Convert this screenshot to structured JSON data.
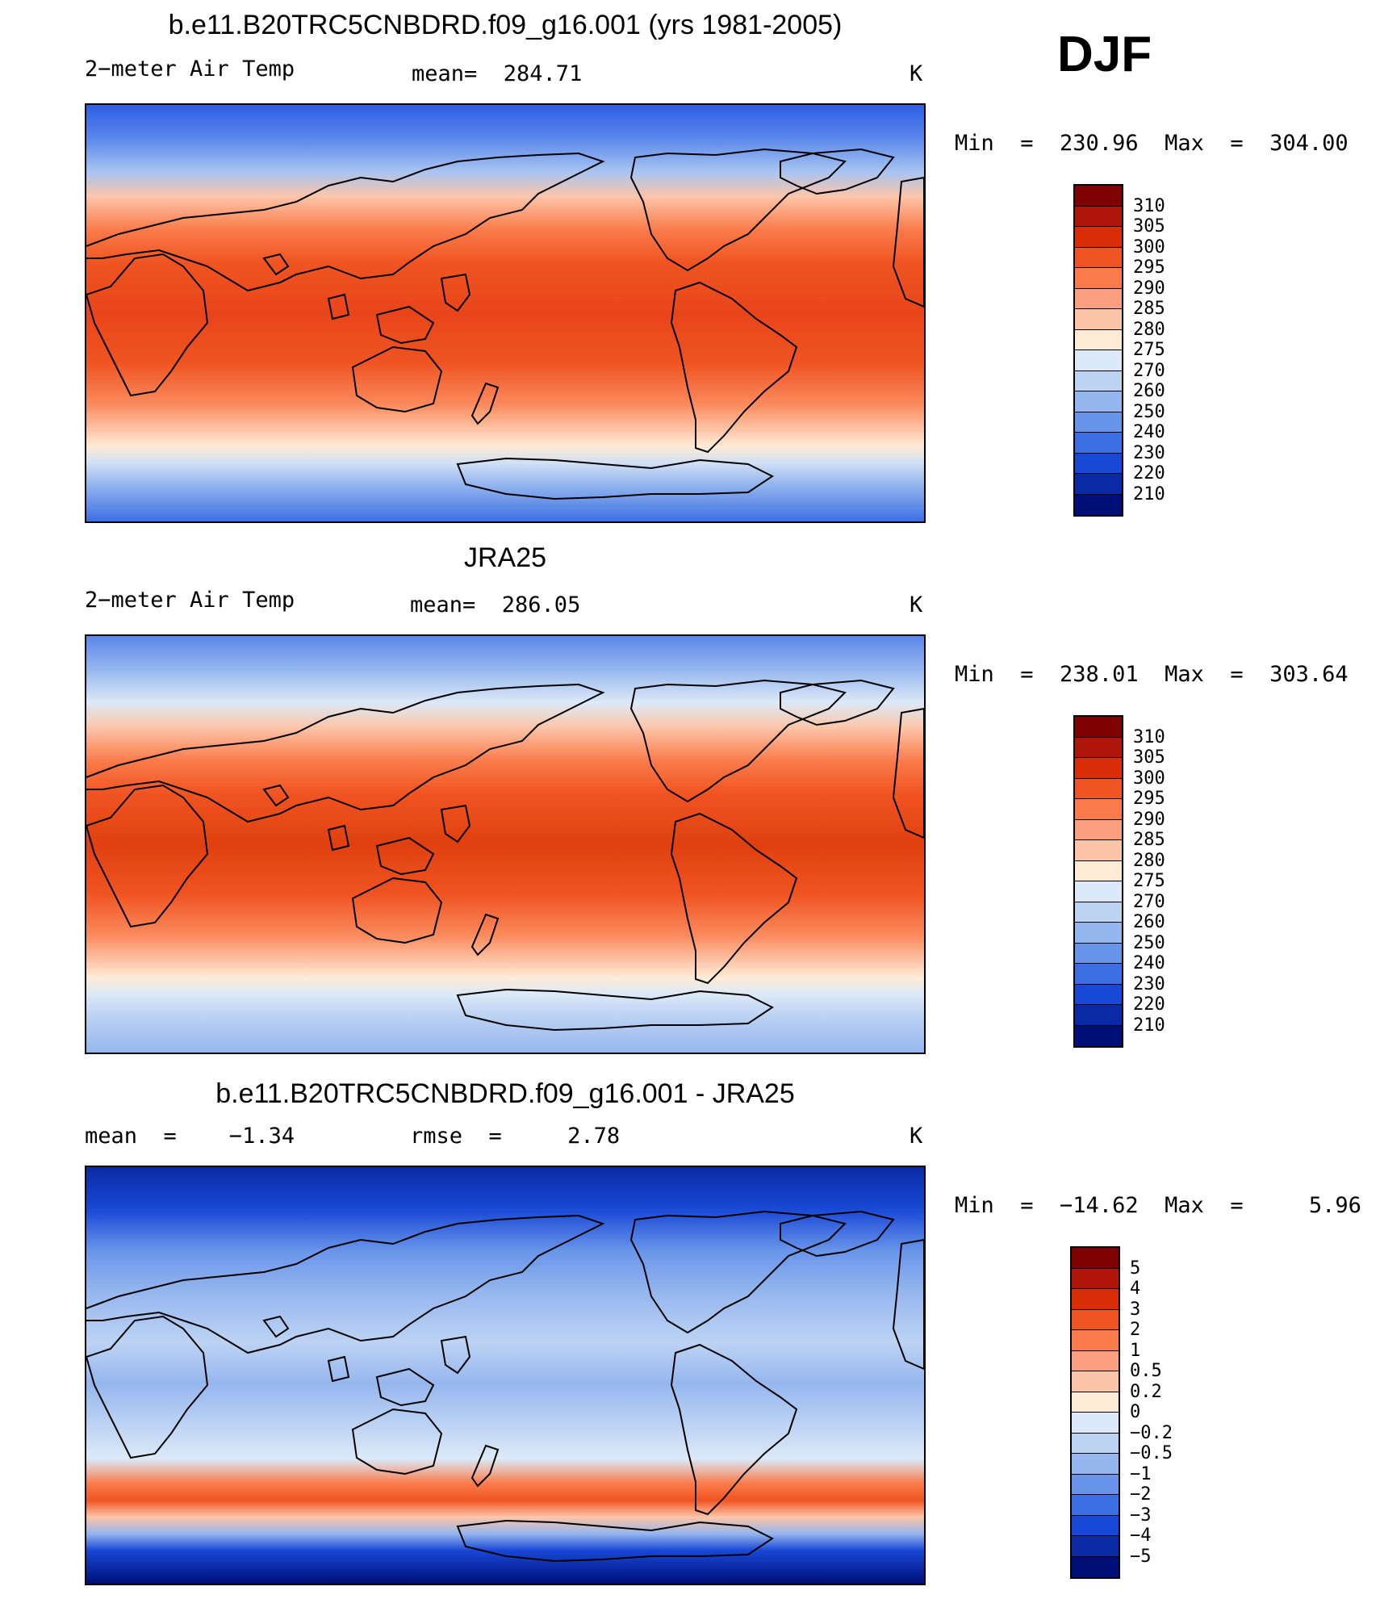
{
  "season": "DJF",
  "units": "K",
  "panels": [
    {
      "title": "b.e11.B20TRC5CNBDRD.f09_g16.001 (yrs 1981-2005)",
      "left_label": "2−meter Air Temp",
      "center_label": "mean=  284.71",
      "units": "K",
      "minmax": "Min  =  230.96  Max  =  304.00",
      "colorbar_labels": [
        "310",
        "305",
        "300",
        "295",
        "290",
        "285",
        "280",
        "275",
        "270",
        "260",
        "250",
        "240",
        "230",
        "220",
        "210"
      ],
      "colorbar_colors": [
        "#7f0000",
        "#b0150a",
        "#d92d08",
        "#f05422",
        "#fb7b4b",
        "#fc9f80",
        "#fdc5a8",
        "#feebd6",
        "#dce9f8",
        "#bdd3f4",
        "#95b6ee",
        "#6894ea",
        "#3c6fe4",
        "#1848d6",
        "#0a2aa5",
        "#000e78"
      ],
      "gradient": [
        {
          "y": 0.0,
          "c": "#2d5fe6"
        },
        {
          "y": 0.08,
          "c": "#5a86ea"
        },
        {
          "y": 0.16,
          "c": "#a7c4f2"
        },
        {
          "y": 0.22,
          "c": "#fdc5a8"
        },
        {
          "y": 0.3,
          "c": "#fb7b4b"
        },
        {
          "y": 0.38,
          "c": "#f05422"
        },
        {
          "y": 0.5,
          "c": "#e8451a"
        },
        {
          "y": 0.62,
          "c": "#f05422"
        },
        {
          "y": 0.72,
          "c": "#fb8b5e"
        },
        {
          "y": 0.78,
          "c": "#fdc5a8"
        },
        {
          "y": 0.82,
          "c": "#feebd6"
        },
        {
          "y": 0.86,
          "c": "#cfe0f6"
        },
        {
          "y": 0.91,
          "c": "#95b6ee"
        },
        {
          "y": 1.0,
          "c": "#3c6fe4"
        }
      ]
    },
    {
      "title": "JRA25",
      "left_label": "2−meter Air Temp",
      "center_label": "mean=  286.05",
      "units": "K",
      "minmax": "Min  =  238.01  Max  =  303.64",
      "colorbar_labels": [
        "310",
        "305",
        "300",
        "295",
        "290",
        "285",
        "280",
        "275",
        "270",
        "260",
        "250",
        "240",
        "230",
        "220",
        "210"
      ],
      "colorbar_colors": [
        "#7f0000",
        "#b0150a",
        "#d92d08",
        "#f05422",
        "#fb7b4b",
        "#fc9f80",
        "#fdc5a8",
        "#feebd6",
        "#dce9f8",
        "#bdd3f4",
        "#95b6ee",
        "#6894ea",
        "#3c6fe4",
        "#1848d6",
        "#0a2aa5",
        "#000e78"
      ],
      "gradient": [
        {
          "y": 0.0,
          "c": "#5a86ea"
        },
        {
          "y": 0.08,
          "c": "#95b6ee"
        },
        {
          "y": 0.16,
          "c": "#dce9f8"
        },
        {
          "y": 0.22,
          "c": "#fdc5a8"
        },
        {
          "y": 0.3,
          "c": "#fb7b4b"
        },
        {
          "y": 0.38,
          "c": "#f05422"
        },
        {
          "y": 0.5,
          "c": "#e0400f"
        },
        {
          "y": 0.62,
          "c": "#f05422"
        },
        {
          "y": 0.72,
          "c": "#fb8b5e"
        },
        {
          "y": 0.78,
          "c": "#fdc5a8"
        },
        {
          "y": 0.82,
          "c": "#feebd6"
        },
        {
          "y": 0.86,
          "c": "#dce9f8"
        },
        {
          "y": 0.91,
          "c": "#bdd3f4"
        },
        {
          "y": 1.0,
          "c": "#95b6ee"
        }
      ]
    },
    {
      "title": "b.e11.B20TRC5CNBDRD.f09_g16.001 - JRA25",
      "left_label": "mean  =    −1.34",
      "center_label": "rmse  =     2.78",
      "units": "K",
      "minmax": "Min  =  −14.62  Max  =     5.96",
      "colorbar_labels": [
        "5",
        "4",
        "3",
        "2",
        "1",
        "0.5",
        "0.2",
        "0",
        "−0.2",
        "−0.5",
        "−1",
        "−2",
        "−3",
        "−4",
        "−5"
      ],
      "colorbar_colors": [
        "#7f0000",
        "#b0150a",
        "#d92d08",
        "#f05422",
        "#fb7b4b",
        "#fc9f80",
        "#fdc5a8",
        "#feebd6",
        "#dce9f8",
        "#bdd3f4",
        "#95b6ee",
        "#6894ea",
        "#3c6fe4",
        "#1848d6",
        "#0a2aa5",
        "#000e78"
      ],
      "gradient": [
        {
          "y": 0.0,
          "c": "#0a2aa5"
        },
        {
          "y": 0.1,
          "c": "#1848d6"
        },
        {
          "y": 0.2,
          "c": "#6894ea"
        },
        {
          "y": 0.3,
          "c": "#95b6ee"
        },
        {
          "y": 0.42,
          "c": "#bdd3f4"
        },
        {
          "y": 0.52,
          "c": "#95b6ee"
        },
        {
          "y": 0.62,
          "c": "#bdd3f4"
        },
        {
          "y": 0.7,
          "c": "#dce9f8"
        },
        {
          "y": 0.76,
          "c": "#fb7b4b"
        },
        {
          "y": 0.8,
          "c": "#f05422"
        },
        {
          "y": 0.84,
          "c": "#fdc5a8"
        },
        {
          "y": 0.88,
          "c": "#95b6ee"
        },
        {
          "y": 0.92,
          "c": "#1848d6"
        },
        {
          "y": 1.0,
          "c": "#000e78"
        }
      ]
    }
  ]
}
